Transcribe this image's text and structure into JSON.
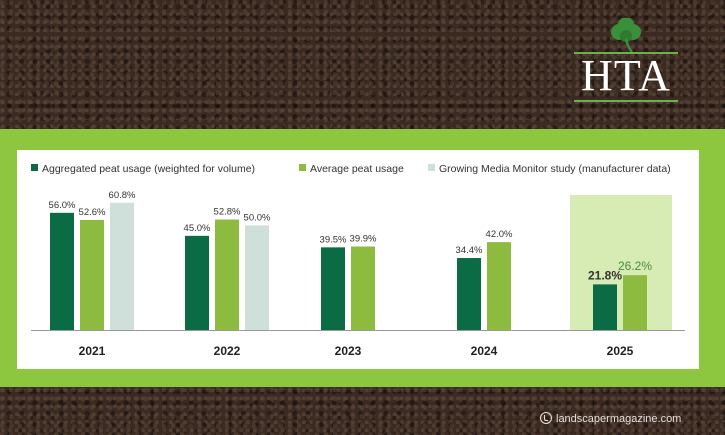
{
  "logo": {
    "text": "HTA",
    "icon": "shamrock-icon"
  },
  "credit": {
    "text": "landscapermagazine.com",
    "icon": "copyright-icon"
  },
  "colors": {
    "soil": "#3a2a22",
    "band": "#8dc63f",
    "aggregated": "#0b6b45",
    "average": "#8dbb3f",
    "gmm": "#cfe0da",
    "highlight": "#d6ecb4"
  },
  "chart_data": {
    "type": "bar",
    "categories": [
      "2021",
      "2022",
      "2023",
      "2024",
      "2025"
    ],
    "highlight_category": "2025",
    "series": [
      {
        "name": "Aggregated peat usage (weighted for volume)",
        "values": [
          56.0,
          45.0,
          39.5,
          34.4,
          21.8
        ],
        "labels": [
          "56.0%",
          "45.0%",
          "39.5%",
          "34.4%",
          "21.8%"
        ]
      },
      {
        "name": "Average peat usage",
        "values": [
          52.6,
          52.8,
          39.9,
          42.0,
          26.2
        ],
        "labels": [
          "52.6%",
          "52.8%",
          "39.9%",
          "42.0%",
          "26.2%"
        ]
      },
      {
        "name": "Growing Media Monitor study (manufacturer data)",
        "values": [
          60.8,
          50.0,
          null,
          null,
          null
        ],
        "labels": [
          "60.8%",
          "50.0%",
          "",
          "",
          ""
        ]
      }
    ],
    "ylim": [
      0,
      65
    ],
    "legend_position": "top",
    "grid": false
  }
}
